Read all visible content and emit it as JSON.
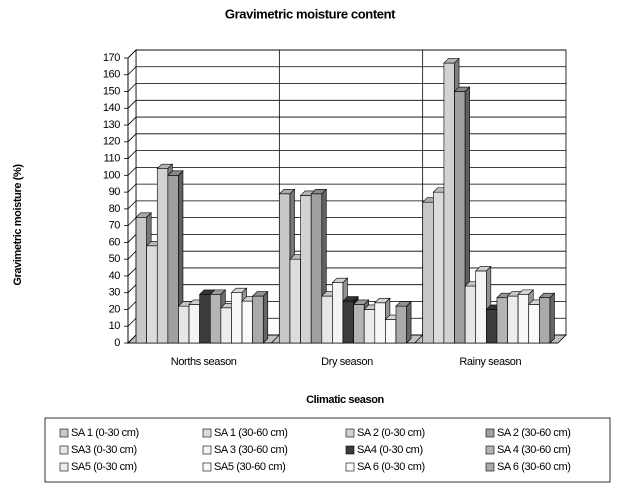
{
  "chart_data": {
    "type": "bar3d",
    "title": "Gravimetric moisture content",
    "x_label": "Climatic season",
    "y_label": "Gravimetric moisture (%)",
    "categories": [
      "Norths season",
      "Dry season",
      "Rainy season"
    ],
    "series": [
      {
        "name": "SA 1 (0-30 cm)",
        "color": "#c8c8c8",
        "values": [
          75,
          89,
          84
        ]
      },
      {
        "name": "SA 1 (30-60 cm)",
        "color": "#dcdcdc",
        "values": [
          58,
          50,
          90
        ]
      },
      {
        "name": "SA 2 (0-30 cm)",
        "color": "#d2d2d2",
        "values": [
          104,
          88,
          167
        ]
      },
      {
        "name": "SA 2 (30-60 cm)",
        "color": "#a0a0a0",
        "values": [
          100,
          89,
          150
        ]
      },
      {
        "name": "SA3 (0-30 cm)",
        "color": "#e6e6e6",
        "values": [
          22,
          28,
          34
        ]
      },
      {
        "name": "SA 3 (30-60 cm)",
        "color": "#f4f4f4",
        "values": [
          23,
          36,
          43
        ]
      },
      {
        "name": "SA4 (0-30 cm)",
        "color": "#3c3c3c",
        "values": [
          29,
          25,
          20
        ]
      },
      {
        "name": "SA 4 (30-60 cm)",
        "color": "#b4b4b4",
        "values": [
          29,
          23,
          27
        ]
      },
      {
        "name": "SA5 (0-30 cm)",
        "color": "#ececec",
        "values": [
          21,
          20,
          28
        ]
      },
      {
        "name": "SA5 (30-60 cm)",
        "color": "#f8f8f8",
        "values": [
          30,
          24,
          29
        ]
      },
      {
        "name": "SA 6 (0-30 cm)",
        "color": "#fafafa",
        "values": [
          25,
          14,
          23
        ]
      },
      {
        "name": "SA 6 (30-60 cm)",
        "color": "#aaaaaa",
        "values": [
          28,
          22,
          27
        ]
      }
    ],
    "ylim": [
      0,
      170
    ],
    "yticks": [
      0,
      10,
      20,
      30,
      40,
      50,
      60,
      70,
      80,
      90,
      100,
      110,
      120,
      130,
      140,
      150,
      160,
      170
    ],
    "grid": true
  }
}
